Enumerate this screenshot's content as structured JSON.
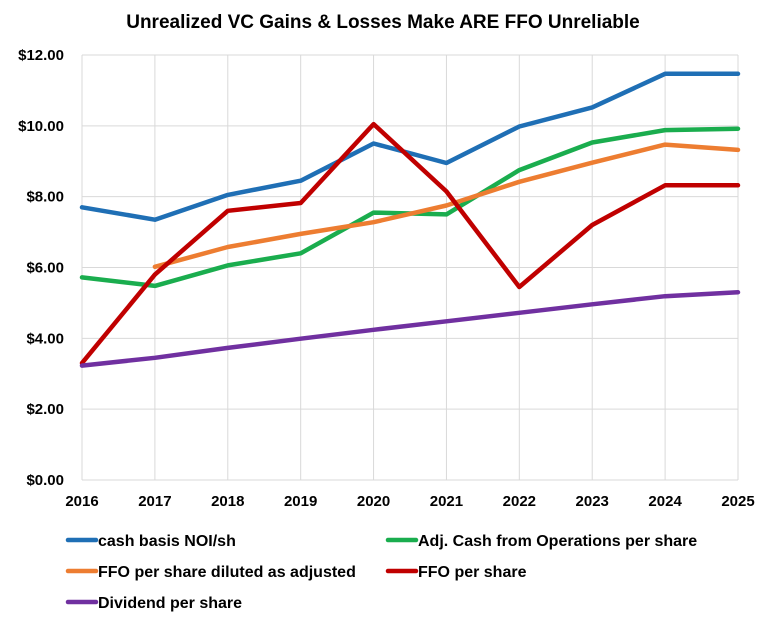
{
  "chart_data": {
    "type": "line",
    "title": "Unrealized VC Gains & Losses Make ARE FFO Unreliable",
    "xlabel": "",
    "ylabel": "",
    "x": [
      2016,
      2017,
      2018,
      2019,
      2020,
      2021,
      2022,
      2023,
      2024,
      2025
    ],
    "x_tick_labels": [
      "2016",
      "2017",
      "2018",
      "2019",
      "2020",
      "2021",
      "2022",
      "2023",
      "2024",
      "2025"
    ],
    "ylim": [
      0,
      12
    ],
    "y_ticks": [
      0,
      2,
      4,
      6,
      8,
      10,
      12
    ],
    "y_tick_labels": [
      "$0.00",
      "$2.00",
      "$4.00",
      "$6.00",
      "$8.00",
      "$10.00",
      "$12.00"
    ],
    "grid": true,
    "legend_position": "bottom",
    "series": [
      {
        "name": "cash basis NOI/sh",
        "color": "#1f6fb5",
        "values": [
          7.7,
          7.35,
          8.05,
          8.45,
          9.5,
          8.95,
          9.98,
          10.52,
          11.47,
          11.47
        ]
      },
      {
        "name": "Adj. Cash from Operations per share",
        "color": "#1aad4e",
        "values": [
          5.72,
          5.48,
          6.06,
          6.4,
          7.55,
          7.5,
          8.75,
          9.53,
          9.88,
          9.92
        ]
      },
      {
        "name": "FFO per share diluted as adjusted",
        "color": "#ed7d31",
        "values": [
          null,
          6.02,
          6.58,
          6.95,
          7.28,
          7.75,
          8.42,
          8.96,
          9.47,
          9.32
        ]
      },
      {
        "name": "FFO per share",
        "color": "#c00000",
        "values": [
          3.3,
          5.8,
          7.6,
          7.82,
          10.05,
          8.15,
          5.45,
          7.2,
          8.32,
          8.32
        ]
      },
      {
        "name": "Dividend per share",
        "color": "#7030a0",
        "values": [
          3.23,
          3.45,
          3.73,
          3.99,
          4.24,
          4.48,
          4.72,
          4.96,
          5.19,
          5.3
        ]
      }
    ]
  }
}
